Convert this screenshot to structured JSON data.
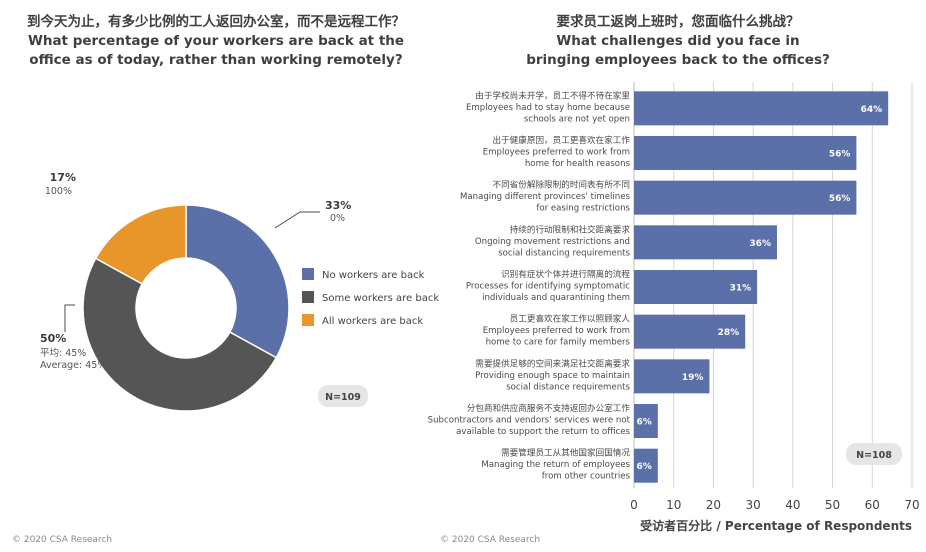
{
  "left": {
    "title_cn": "到今天为止，有多少比例的工人返回办公室，而不是远程工作？",
    "title_en_line1": "What percentage of your workers are back at the",
    "title_en_line2": "office as of today, rather than working remotely?",
    "sample_size": "N=109",
    "copyright": "© 2020 CSA Research"
  },
  "right": {
    "title_cn": "要求员工返岗上班时，您面临什么挑战？",
    "title_en_line1": "What challenges did you face in",
    "title_en_line2": "bringing employees back to the offices?",
    "sample_size": "N=108",
    "copyright": "© 2020 CSA Research"
  },
  "chart_data": [
    {
      "type": "pie",
      "variant": "donut",
      "title": "What percentage of your workers are back at the office as of today, rather than working remotely?",
      "slices": [
        {
          "name": "No workers are back",
          "value": 33,
          "label": "33%",
          "sublabel": [
            "0%"
          ],
          "color": "#5b6fa8"
        },
        {
          "name": "Some workers are back",
          "value": 50,
          "label": "50%",
          "sublabel": [
            "平均: 45%",
            "Average: 45%"
          ],
          "color": "#555555"
        },
        {
          "name": "All workers are back",
          "value": 17,
          "label": "17%",
          "sublabel": [
            "100%"
          ],
          "color": "#e8952a"
        }
      ],
      "legend_position": "right"
    },
    {
      "type": "bar",
      "orientation": "horizontal",
      "title": "What challenges did you face in bringing employees back to the offices?",
      "xlabel": "受访者百分比 / Percentage of Respondents",
      "xlim": [
        0,
        70
      ],
      "xticks": [
        "0",
        "10",
        "20",
        "30",
        "40",
        "50",
        "60",
        "70"
      ],
      "grid": true,
      "bar_color": "#5b6fa8",
      "categories": [
        [
          "由于学校尚未开学，员工不得不待在家里",
          "Employees had to stay home because",
          "schools are not yet open"
        ],
        [
          "出于健康原因，员工更喜欢在家工作",
          "Employees preferred to work from",
          "home for health reasons"
        ],
        [
          "不同省份解除限制的时间表有所不同",
          "Managing different provinces' timelines",
          "for easing restrictions"
        ],
        [
          "持续的行动限制和社交距离要求",
          "Ongoing movement restrictions and",
          "social distancing requirements"
        ],
        [
          "识别有症状个体并进行隔离的流程",
          "Processes for identifying symptomatic",
          "individuals and quarantining them"
        ],
        [
          "员工更喜欢在家工作以照顾家人",
          "Employees preferred to work from",
          "home to care for family members"
        ],
        [
          "需要提供足够的空间来满足社交距离要求",
          "Providing enough space to maintain",
          "social distance requirements"
        ],
        [
          "分包商和供应商服务不支持返回办公室工作",
          "Subcontractors and vendors' services were not",
          "available to support the return to offices"
        ],
        [
          "需要管理员工从其他国家回国情况",
          "Managing the return of employees",
          "from other countries"
        ]
      ],
      "values": [
        64,
        56,
        56,
        36,
        31,
        28,
        19,
        6,
        6
      ],
      "data_labels": [
        "64%",
        "56%",
        "56%",
        "36%",
        "31%",
        "28%",
        "19%",
        "6%",
        "6%"
      ]
    }
  ]
}
